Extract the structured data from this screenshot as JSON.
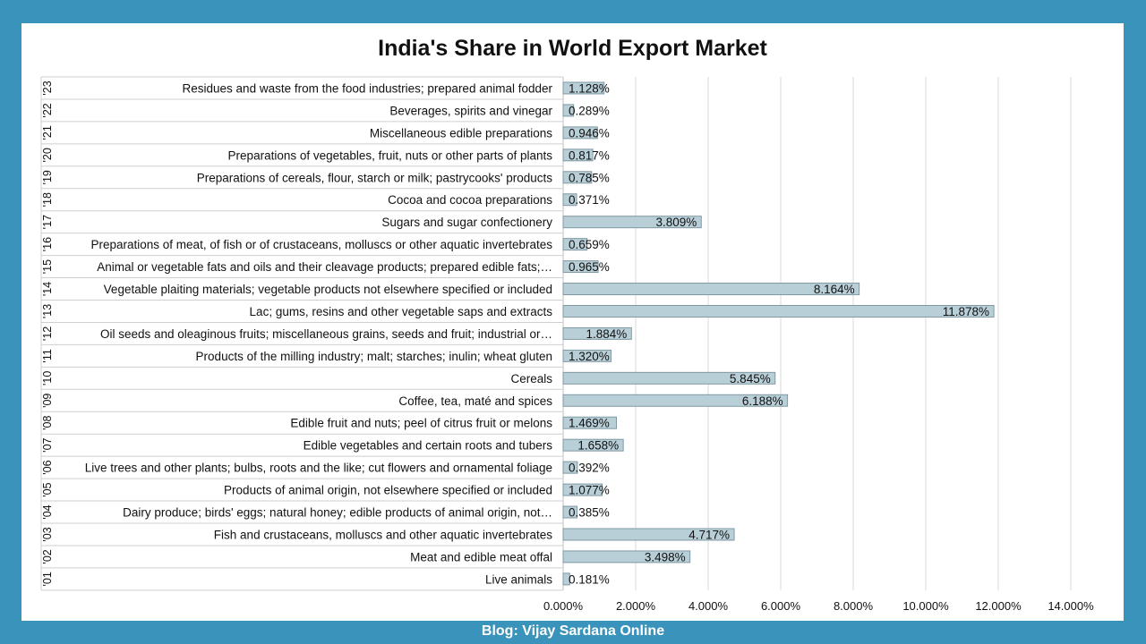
{
  "footer": "Blog: Vijay Sardana Online",
  "chart_data": {
    "type": "bar",
    "orientation": "horizontal",
    "title": "India's Share in World Export Market",
    "codes": [
      "'01",
      "'02",
      "'03",
      "'04",
      "'05",
      "'06",
      "'07",
      "'08",
      "'09",
      "'10",
      "'11",
      "'12",
      "'13",
      "'14",
      "'15",
      "'16",
      "'17",
      "'18",
      "'19",
      "'20",
      "'21",
      "'22",
      "'23"
    ],
    "categories": [
      "Live animals",
      "Meat and edible meat offal",
      "Fish and crustaceans, molluscs and other aquatic invertebrates",
      "Dairy produce; birds' eggs; natural honey; edible products of animal origin, not…",
      "Products of animal origin, not elsewhere specified or included",
      "Live trees and other plants; bulbs, roots and the like; cut flowers and ornamental foliage",
      "Edible vegetables and certain roots and tubers",
      "Edible fruit and nuts; peel of citrus fruit or melons",
      "Coffee, tea, maté and spices",
      "Cereals",
      "Products of the milling industry; malt; starches; inulin; wheat gluten",
      "Oil seeds and oleaginous fruits; miscellaneous grains, seeds and fruit; industrial or…",
      "Lac; gums, resins and other vegetable saps and extracts",
      "Vegetable plaiting materials; vegetable products not elsewhere specified or included",
      "Animal or vegetable fats and oils and their cleavage products; prepared edible fats;…",
      "Preparations of meat, of fish or of crustaceans, molluscs or other aquatic invertebrates",
      "Sugars and sugar confectionery",
      "Cocoa and cocoa preparations",
      "Preparations of cereals, flour, starch or milk; pastrycooks' products",
      "Preparations of vegetables, fruit, nuts or other parts of plants",
      "Miscellaneous edible preparations",
      "Beverages, spirits and vinegar",
      "Residues and waste from the food industries; prepared animal fodder"
    ],
    "values": [
      0.181,
      3.498,
      4.717,
      0.385,
      1.077,
      0.392,
      1.658,
      1.469,
      6.188,
      5.845,
      1.32,
      1.884,
      11.878,
      8.164,
      0.965,
      0.659,
      3.809,
      0.371,
      0.785,
      0.817,
      0.946,
      0.289,
      1.128
    ],
    "value_labels": [
      "0.181%",
      "3.498%",
      "4.717%",
      "0.385%",
      "1.077%",
      "0.392%",
      "1.658%",
      "1.469%",
      "6.188%",
      "5.845%",
      "1.320%",
      "1.884%",
      "11.878%",
      "8.164%",
      "0.965%",
      "0.659%",
      "3.809%",
      "0.371%",
      "0.785%",
      "0.817%",
      "0.946%",
      "0.289%",
      "1.128%"
    ],
    "xticks": [
      "0.000%",
      "2.000%",
      "4.000%",
      "6.000%",
      "8.000%",
      "10.000%",
      "12.000%",
      "14.000%"
    ],
    "xlim": [
      0,
      14
    ],
    "grid": true,
    "bar_color": "#b9cfd8",
    "bar_border": "#7f98a3",
    "background": "#3a93bb"
  }
}
